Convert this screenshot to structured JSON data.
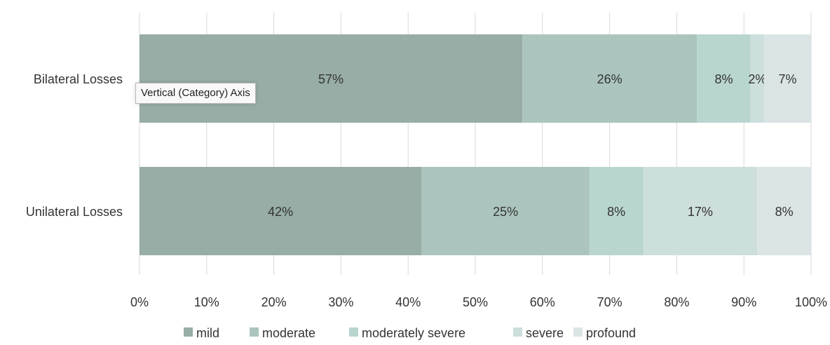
{
  "chart_data": {
    "type": "bar",
    "orientation": "horizontal",
    "stacked": true,
    "categories": [
      "Bilateral Losses",
      "Unilateral Losses"
    ],
    "series": [
      {
        "name": "mild",
        "values": [
          57,
          42
        ],
        "color": "#97ada5"
      },
      {
        "name": "moderate",
        "values": [
          26,
          25
        ],
        "color": "#abc5be"
      },
      {
        "name": "moderately severe",
        "values": [
          8,
          8
        ],
        "color": "#b9d5d0"
      },
      {
        "name": "severe",
        "values": [
          2,
          17
        ],
        "color": "#cddfdd"
      },
      {
        "name": "profound",
        "values": [
          7,
          8
        ],
        "color": "#dbe4e4"
      }
    ],
    "data_labels": [
      [
        "57%",
        "26%",
        "8%",
        "2%",
        "7%"
      ],
      [
        "42%",
        "25%",
        "8%",
        "17%",
        "8%"
      ]
    ],
    "x_ticks": [
      "0%",
      "10%",
      "20%",
      "30%",
      "40%",
      "50%",
      "60%",
      "70%",
      "80%",
      "90%",
      "100%"
    ],
    "xlim": [
      0,
      100
    ],
    "grid": true,
    "legend_position": "bottom"
  },
  "tooltip": {
    "text": "Vertical (Category) Axis"
  }
}
